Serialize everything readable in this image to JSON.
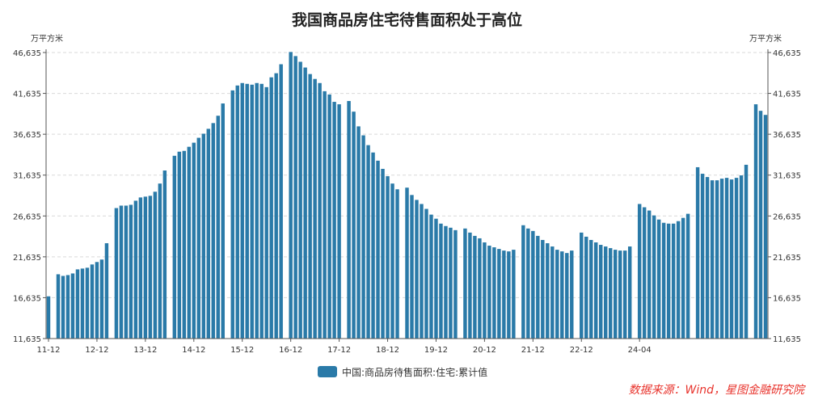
{
  "chart_data": {
    "type": "bar",
    "title": "我国商品房住宅待售面积处于高位",
    "left_unit": "万平方米",
    "right_unit": "万平方米",
    "ylim": [
      11635,
      46635
    ],
    "yticks": [
      "11,635",
      "16,635",
      "21,635",
      "26,635",
      "31,635",
      "36,635",
      "41,635",
      "46,635"
    ],
    "x_tick_labels": [
      "11-12",
      "12-12",
      "13-12",
      "14-12",
      "15-12",
      "16-12",
      "17-12",
      "18-12",
      "19-12",
      "20-12",
      "21-12",
      "22-12",
      "24-04"
    ],
    "x_tick_index": [
      0,
      10,
      20,
      30,
      40,
      50,
      60,
      70,
      80,
      90,
      100,
      110,
      122
    ],
    "grid": true,
    "bar_color": "#2a7aa8",
    "series": [
      {
        "name": "中国:商品房待售面积:住宅:累计值",
        "values": [
          16800,
          null,
          19500,
          19300,
          19400,
          19600,
          20100,
          20200,
          20300,
          20700,
          21000,
          21300,
          23300,
          null,
          27600,
          27900,
          27900,
          28000,
          28500,
          28900,
          29000,
          29100,
          29600,
          30600,
          32200,
          null,
          34000,
          34500,
          34600,
          35100,
          35600,
          36200,
          36700,
          37300,
          38000,
          38900,
          40400,
          null,
          42000,
          42600,
          42900,
          42800,
          42700,
          42900,
          42800,
          42400,
          43600,
          44100,
          45200,
          null,
          46700,
          46200,
          45500,
          44800,
          44000,
          43400,
          42900,
          41900,
          41500,
          40600,
          40300,
          null,
          40700,
          39400,
          37600,
          36500,
          35300,
          34400,
          33400,
          32400,
          31500,
          30600,
          29900,
          null,
          30100,
          29200,
          28600,
          28100,
          27500,
          26800,
          26300,
          25700,
          25400,
          25200,
          24900,
          null,
          25100,
          24600,
          24200,
          23900,
          23400,
          23000,
          22800,
          22600,
          22400,
          22300,
          22500,
          null,
          25500,
          25100,
          24800,
          24200,
          23700,
          23300,
          22900,
          22500,
          22300,
          22100,
          22400,
          null,
          24600,
          24100,
          23700,
          23400,
          23100,
          22900,
          22700,
          22500,
          22400,
          22400,
          22900,
          null,
          28100,
          27700,
          27300,
          26700,
          26200,
          25800,
          25700,
          25700,
          26000,
          26400,
          26900,
          null,
          32600,
          31800,
          31400,
          31000,
          31000,
          31200,
          31300,
          31100,
          31300,
          31600,
          32900,
          null,
          40300,
          39500,
          39000
        ]
      }
    ]
  },
  "source_text": "数据来源：Wind，星图金融研究院"
}
